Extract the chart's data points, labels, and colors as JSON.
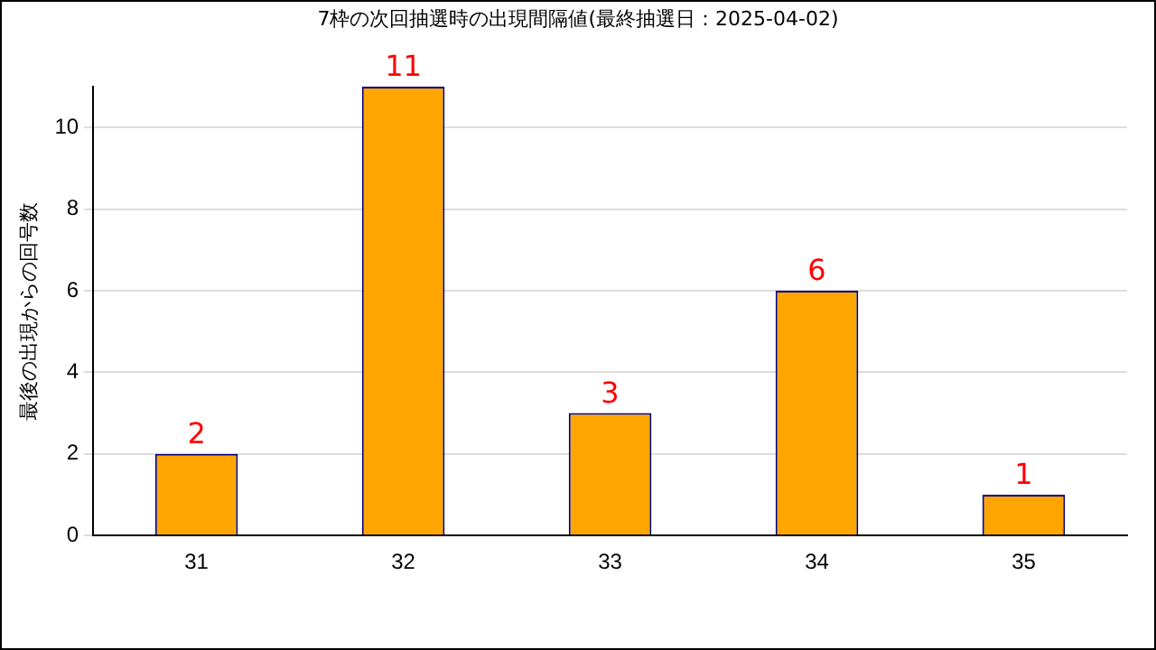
{
  "chart_data": {
    "type": "bar",
    "title": "7枠の次回抽選時の出現間隔値(最終抽選日：2025-04-02)",
    "ylabel": "最後の出現からの回号数",
    "categories": [
      "31",
      "32",
      "33",
      "34",
      "35"
    ],
    "values": [
      2,
      11,
      3,
      6,
      1
    ],
    "color": "#ffa500",
    "ylim": [
      0,
      11
    ],
    "yticks": [
      0,
      2,
      4,
      6,
      8,
      10
    ],
    "grid": "y",
    "data_labels": true,
    "legend": false
  }
}
